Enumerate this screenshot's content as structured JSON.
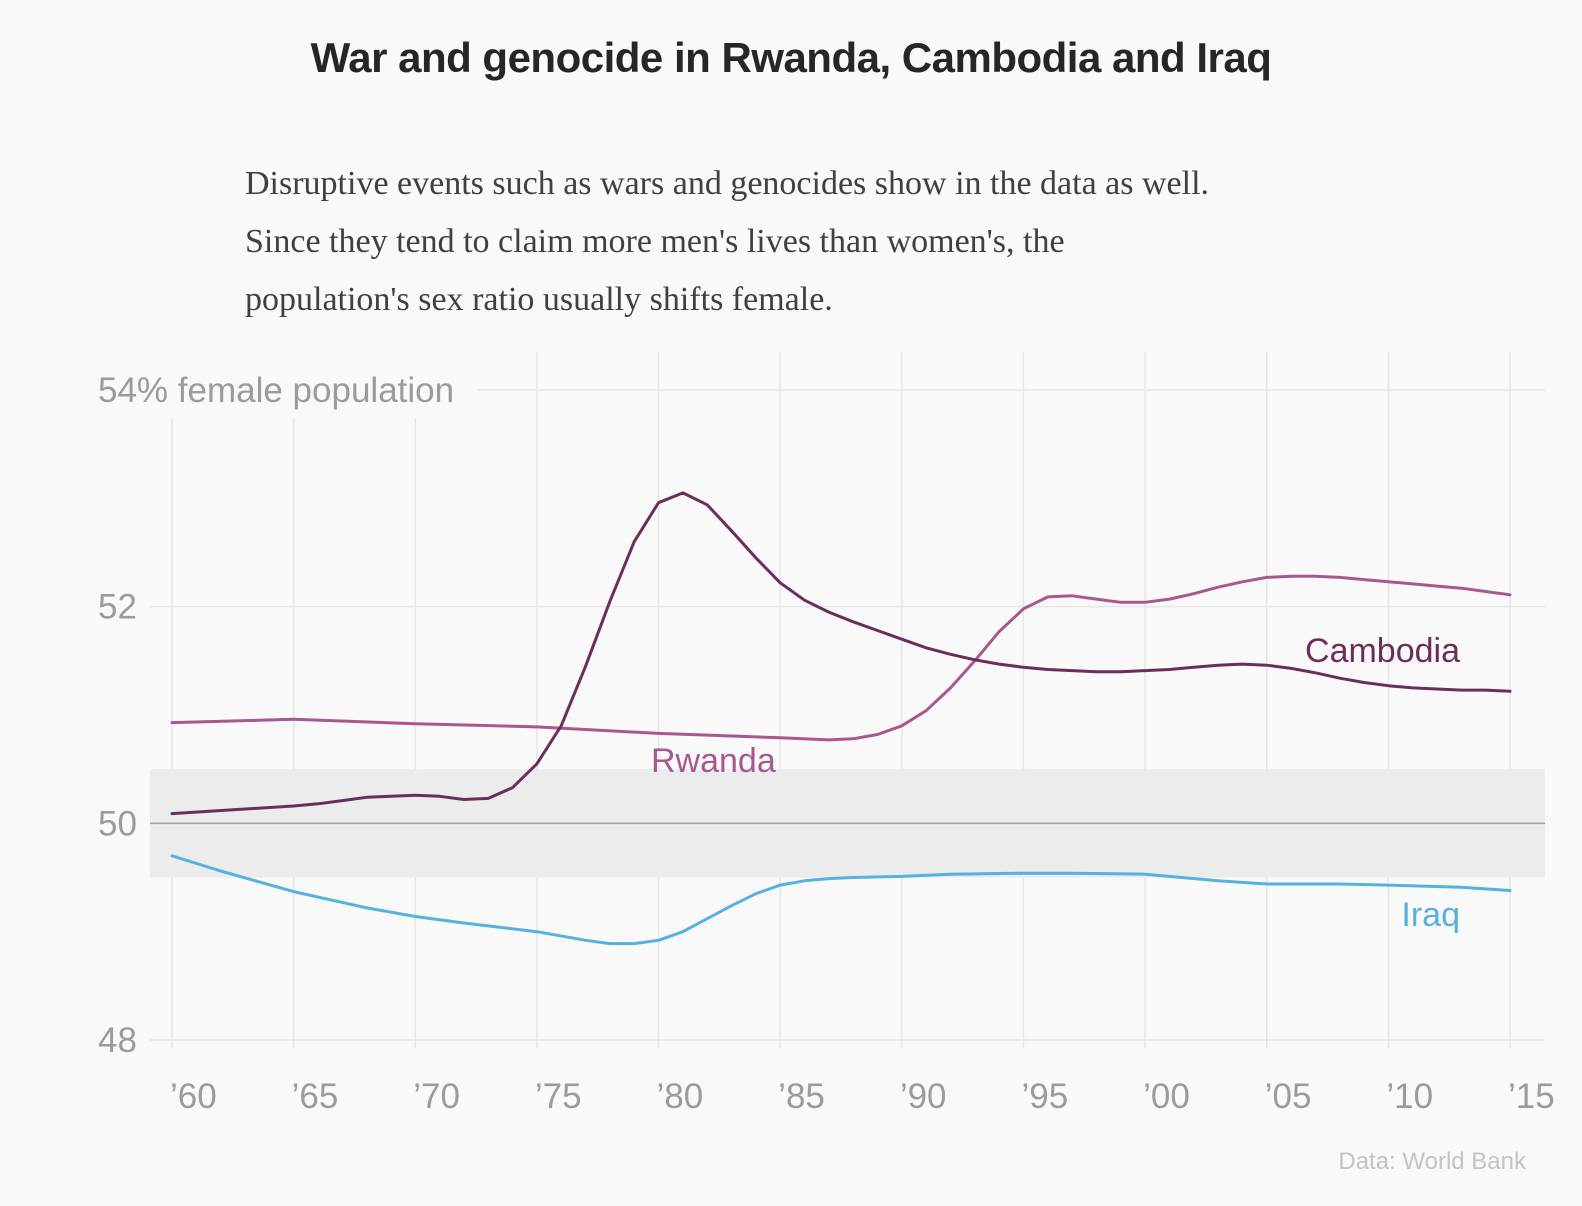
{
  "title": "War and genocide in Rwanda, Cambodia and Iraq",
  "description": [
    "Disruptive events such as wars and genocides show in the data as well.",
    "Since they tend to claim more men's lives than women's, the",
    "population's sex ratio usually shifts female."
  ],
  "source": "Data: World Bank",
  "colors": {
    "background": "#f9f9f9",
    "grid": "#e6e6e6",
    "band": "#ececec",
    "baseline": "#9e9e9e",
    "axis_text": "#9b9b9b",
    "Rwanda": "#a8588d",
    "Cambodia": "#6b2f57",
    "Iraq": "#58b0e0"
  },
  "chart_data": {
    "type": "line",
    "ylim": [
      48,
      54
    ],
    "xlim": [
      1960,
      2016
    ],
    "grid": true,
    "y_ticks": [
      {
        "value": 48,
        "label": "48"
      },
      {
        "value": 50,
        "label": "50"
      },
      {
        "value": 52,
        "label": "52"
      },
      {
        "value": 54,
        "label": "54% female population"
      }
    ],
    "x_ticks": [
      {
        "value": 1960,
        "label": "’60"
      },
      {
        "value": 1965,
        "label": "’65"
      },
      {
        "value": 1970,
        "label": "’70"
      },
      {
        "value": 1975,
        "label": "’75"
      },
      {
        "value": 1980,
        "label": "’80"
      },
      {
        "value": 1985,
        "label": "’85"
      },
      {
        "value": 1990,
        "label": "’90"
      },
      {
        "value": 1995,
        "label": "’95"
      },
      {
        "value": 2000,
        "label": "’00"
      },
      {
        "value": 2005,
        "label": "’05"
      },
      {
        "value": 2010,
        "label": "’10"
      },
      {
        "value": 2015,
        "label": "’15"
      }
    ],
    "band": [
      49.5,
      50.5
    ],
    "baseline": 50,
    "series": [
      {
        "name": "Rwanda",
        "x": [
          1960,
          1965,
          1970,
          1975,
          1980,
          1985,
          1987,
          1988,
          1989,
          1990,
          1991,
          1992,
          1993,
          1994,
          1995,
          1996,
          1997,
          1998,
          1999,
          2000,
          2001,
          2002,
          2003,
          2004,
          2005,
          2006,
          2007,
          2008,
          2009,
          2010,
          2011,
          2012,
          2013,
          2014,
          2015
        ],
        "y": [
          50.93,
          50.96,
          50.92,
          50.89,
          50.83,
          50.79,
          50.77,
          50.78,
          50.82,
          50.9,
          51.04,
          51.25,
          51.5,
          51.77,
          51.98,
          52.09,
          52.1,
          52.07,
          52.04,
          52.04,
          52.07,
          52.12,
          52.18,
          52.23,
          52.27,
          52.28,
          52.28,
          52.27,
          52.25,
          52.23,
          52.21,
          52.19,
          52.17,
          52.14,
          52.11
        ]
      },
      {
        "name": "Cambodia",
        "x": [
          1960,
          1965,
          1966,
          1967,
          1968,
          1969,
          1970,
          1971,
          1972,
          1973,
          1974,
          1975,
          1976,
          1977,
          1978,
          1979,
          1980,
          1981,
          1982,
          1983,
          1984,
          1985,
          1986,
          1987,
          1988,
          1989,
          1990,
          1991,
          1992,
          1993,
          1994,
          1995,
          1996,
          1997,
          1998,
          1999,
          2000,
          2001,
          2002,
          2003,
          2004,
          2005,
          2006,
          2007,
          2008,
          2009,
          2010,
          2011,
          2012,
          2013,
          2014,
          2015
        ],
        "y": [
          50.09,
          50.16,
          50.18,
          50.21,
          50.24,
          50.25,
          50.26,
          50.25,
          50.22,
          50.23,
          50.33,
          50.55,
          50.9,
          51.45,
          52.05,
          52.6,
          52.96,
          53.05,
          52.94,
          52.7,
          52.45,
          52.22,
          52.06,
          51.95,
          51.86,
          51.78,
          51.7,
          51.62,
          51.56,
          51.51,
          51.47,
          51.44,
          51.42,
          51.41,
          51.4,
          51.4,
          51.41,
          51.42,
          51.44,
          51.46,
          51.47,
          51.46,
          51.43,
          51.39,
          51.34,
          51.3,
          51.27,
          51.25,
          51.24,
          51.23,
          51.23,
          51.22
        ]
      },
      {
        "name": "Iraq",
        "x": [
          1960,
          1962,
          1965,
          1968,
          1970,
          1972,
          1975,
          1977,
          1978,
          1979,
          1980,
          1981,
          1982,
          1983,
          1984,
          1985,
          1986,
          1987,
          1988,
          1990,
          1992,
          1995,
          1997,
          2000,
          2003,
          2005,
          2008,
          2010,
          2013,
          2015
        ],
        "y": [
          49.7,
          49.56,
          49.37,
          49.22,
          49.14,
          49.08,
          49.0,
          48.92,
          48.89,
          48.89,
          48.92,
          49.0,
          49.12,
          49.24,
          49.35,
          49.43,
          49.47,
          49.49,
          49.5,
          49.51,
          49.53,
          49.54,
          49.54,
          49.53,
          49.47,
          49.44,
          49.44,
          49.43,
          49.41,
          49.38
        ]
      }
    ],
    "annotations": [
      {
        "text": "Rwanda",
        "series": "Rwanda"
      },
      {
        "text": "Cambodia",
        "series": "Cambodia"
      },
      {
        "text": "Iraq",
        "series": "Iraq"
      }
    ]
  }
}
